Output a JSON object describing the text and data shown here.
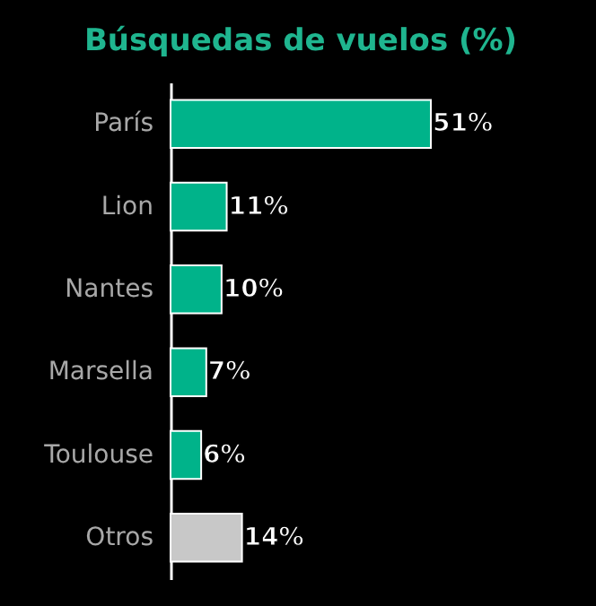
{
  "chart_data": {
    "type": "bar",
    "orientation": "horizontal",
    "title": "Búsquedas de vuelos (%)",
    "categories": [
      "París",
      "Lion",
      "Nantes",
      "Marsella",
      "Toulouse",
      "Otros"
    ],
    "values": [
      51,
      11,
      10,
      7,
      6,
      14
    ],
    "colors": [
      "#00b38a",
      "#00b38a",
      "#00b38a",
      "#00b38a",
      "#00b38a",
      "#c8c8c8"
    ],
    "value_labels": [
      "51%",
      "11%",
      "10%",
      "7%",
      "6%",
      "14%"
    ]
  }
}
